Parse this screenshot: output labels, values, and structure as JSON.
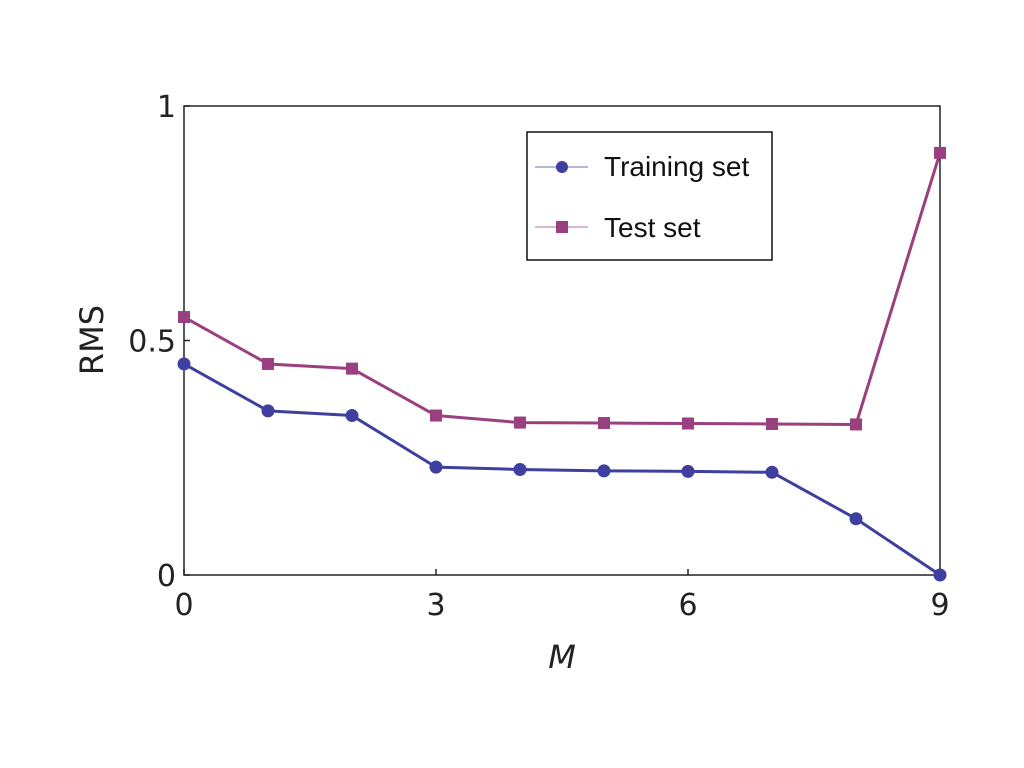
{
  "chart_data": {
    "type": "line",
    "title": "",
    "xlabel": "M",
    "ylabel": "RMS",
    "xlim": [
      0,
      9
    ],
    "ylim": [
      0,
      1
    ],
    "xticks": [
      0,
      3,
      6,
      9
    ],
    "xtick_labels": [
      "0",
      "3",
      "6",
      "9"
    ],
    "yticks": [
      0,
      0.5,
      1
    ],
    "ytick_labels": [
      "0",
      "0.5",
      "1"
    ],
    "grid": false,
    "legend_position": "top-right",
    "x": [
      0,
      1,
      2,
      3,
      4,
      5,
      6,
      7,
      8,
      9
    ],
    "series": [
      {
        "name": "Training set",
        "marker": "circle",
        "color": "#3f3f9f",
        "values": [
          0.45,
          0.35,
          0.34,
          0.23,
          0.225,
          0.222,
          0.221,
          0.219,
          0.12,
          0.0
        ]
      },
      {
        "name": "Test set",
        "marker": "square",
        "color": "#9a3f7f",
        "values": [
          0.55,
          0.45,
          0.44,
          0.34,
          0.325,
          0.324,
          0.323,
          0.322,
          0.321,
          0.9
        ]
      }
    ]
  }
}
